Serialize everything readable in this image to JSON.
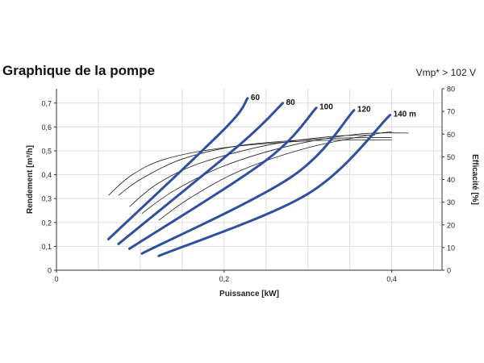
{
  "header": {
    "title": "Graphique de la pompe",
    "condition": "Vmp* > 102 V"
  },
  "colors": {
    "curve": "#2f4f9f",
    "efficiency": "#222222",
    "grid": "#dcdcdc",
    "axis": "#333333"
  },
  "chart_data": {
    "type": "line",
    "title": "Graphique de la pompe",
    "xlabel": "Puissance [kW]",
    "ylabel": "Rendement [m³/h]",
    "y2label": "Efficacité [%]",
    "xlim": [
      0,
      0.46
    ],
    "ylim": [
      0,
      0.76
    ],
    "y2lim": [
      0,
      80
    ],
    "x_ticks": [
      "0",
      "0,2",
      "0,4"
    ],
    "x_tick_values": [
      0,
      0.2,
      0.4
    ],
    "y_ticks": [
      "0",
      "0,1",
      "0,2",
      "0,3",
      "0,4",
      "0,5",
      "0,6",
      "0,7"
    ],
    "y_tick_values": [
      0,
      0.1,
      0.2,
      0.3,
      0.4,
      0.5,
      0.6,
      0.7
    ],
    "y2_ticks": [
      "0",
      "10",
      "20",
      "30",
      "40",
      "50",
      "60",
      "70",
      "80"
    ],
    "y2_tick_values": [
      0,
      10,
      20,
      30,
      40,
      50,
      60,
      70,
      80
    ],
    "grid": true,
    "series": [
      {
        "name": "60",
        "x": [
          0.062,
          0.2,
          0.228
        ],
        "y": [
          0.13,
          0.59,
          0.72
        ]
      },
      {
        "name": "80",
        "x": [
          0.074,
          0.22,
          0.27
        ],
        "y": [
          0.11,
          0.53,
          0.7
        ]
      },
      {
        "name": "100",
        "x": [
          0.087,
          0.25,
          0.31
        ],
        "y": [
          0.09,
          0.46,
          0.68
        ]
      },
      {
        "name": "120",
        "x": [
          0.102,
          0.28,
          0.355
        ],
        "y": [
          0.07,
          0.39,
          0.67
        ]
      },
      {
        "name": "140 m",
        "x": [
          0.122,
          0.3,
          0.398
        ],
        "y": [
          0.06,
          0.32,
          0.65
        ]
      }
    ],
    "efficiency_series": [
      {
        "x": [
          0.062,
          0.09,
          0.13,
          0.2,
          0.3,
          0.4
        ],
        "y": [
          33,
          42,
          49,
          54,
          57,
          57.5
        ]
      },
      {
        "x": [
          0.074,
          0.1,
          0.15,
          0.22,
          0.32,
          0.4
        ],
        "y": [
          33,
          40,
          49,
          55,
          58,
          58.5
        ]
      },
      {
        "x": [
          0.087,
          0.12,
          0.17,
          0.25,
          0.33,
          0.38
        ],
        "y": [
          28,
          38,
          47,
          55,
          59,
          59.5
        ]
      },
      {
        "x": [
          0.102,
          0.14,
          0.2,
          0.28,
          0.36,
          0.42
        ],
        "y": [
          25,
          35,
          46,
          55,
          60,
          60.5
        ]
      },
      {
        "x": [
          0.122,
          0.16,
          0.22,
          0.3,
          0.38,
          0.4
        ],
        "y": [
          22,
          32,
          44,
          54,
          60,
          61
        ]
      }
    ]
  }
}
